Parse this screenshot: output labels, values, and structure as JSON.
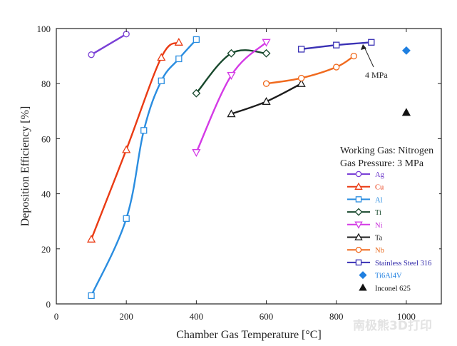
{
  "chart_data": {
    "type": "line",
    "xlabel": "Chamber Gas Temperature [°C]",
    "ylabel": "Deposition Efficiency [%]",
    "xlim": [
      0,
      1100
    ],
    "ylim": [
      0,
      100
    ],
    "xticks": [
      "0",
      "200",
      "400",
      "600",
      "800",
      "1000"
    ],
    "yticks": [
      "0",
      "20",
      "40",
      "60",
      "80",
      "100"
    ],
    "grid": false,
    "legend_position": "right",
    "legend_heading": [
      "Working Gas: Nitrogen",
      "Gas Pressure: 3 MPa"
    ],
    "annotation": "4 MPa",
    "series": [
      {
        "name": "Ag",
        "color": "#7a3fd6",
        "label_color": "#6a35c9",
        "marker": "circle",
        "points": [
          [
            100,
            90.5
          ],
          [
            200,
            98
          ]
        ]
      },
      {
        "name": "Cu",
        "color": "#ea3b14",
        "label_color": "#ea3b14",
        "marker": "triangle",
        "points": [
          [
            100,
            23.5
          ],
          [
            200,
            56
          ],
          [
            300,
            89.5
          ],
          [
            350,
            95
          ]
        ]
      },
      {
        "name": "Al",
        "color": "#2a8de0",
        "label_color": "#2a8de0",
        "marker": "square",
        "points": [
          [
            100,
            3
          ],
          [
            200,
            31
          ],
          [
            250,
            63
          ],
          [
            300,
            81
          ],
          [
            350,
            89
          ],
          [
            400,
            96
          ]
        ]
      },
      {
        "name": "Ti",
        "color": "#17482c",
        "label_color": "#17482c",
        "marker": "diamond",
        "points": [
          [
            400,
            76.5
          ],
          [
            500,
            91
          ],
          [
            600,
            91
          ]
        ]
      },
      {
        "name": "Ni",
        "color": "#d43ae6",
        "label_color": "#c72fd9",
        "marker": "invtriangle",
        "points": [
          [
            400,
            55
          ],
          [
            500,
            83
          ],
          [
            600,
            95
          ]
        ]
      },
      {
        "name": "Ta",
        "color": "#1c1c1c",
        "label_color": "#1c1c1c",
        "marker": "triangle",
        "points": [
          [
            500,
            69
          ],
          [
            600,
            73.5
          ],
          [
            700,
            80
          ]
        ]
      },
      {
        "name": "Nb",
        "color": "#f06a1e",
        "label_color": "#e86a1e",
        "marker": "circle",
        "points": [
          [
            600,
            80
          ],
          [
            700,
            82
          ],
          [
            800,
            86
          ],
          [
            850,
            90
          ]
        ]
      },
      {
        "name": "Stainless Steel 316",
        "color": "#3a31b5",
        "label_color": "#2e26a8",
        "marker": "square",
        "points": [
          [
            700,
            92.5
          ],
          [
            800,
            94
          ],
          [
            900,
            95
          ]
        ]
      },
      {
        "name": "Ti6Al4V",
        "color": "#1f7fe0",
        "label_color": "#1f7fe0",
        "marker": "filled-diamond",
        "points": [
          [
            1000,
            92
          ]
        ]
      },
      {
        "name": "Inconel 625",
        "color": "#111111",
        "label_color": "#111111",
        "marker": "filled-triangle",
        "points": [
          [
            1000,
            69.5
          ]
        ]
      }
    ]
  },
  "watermark": "南极熊3D打印"
}
